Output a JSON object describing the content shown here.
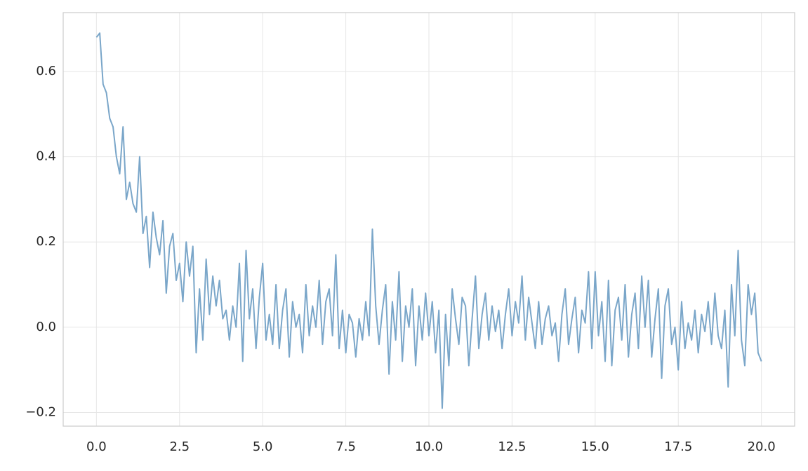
{
  "chart_data": {
    "type": "line",
    "x": [
      0,
      0.1,
      0.2,
      0.3,
      0.4,
      0.5,
      0.6,
      0.7,
      0.8,
      0.9,
      1,
      1.1,
      1.2,
      1.3,
      1.4,
      1.5,
      1.6,
      1.7,
      1.8,
      1.9,
      2,
      2.1,
      2.2,
      2.3,
      2.4,
      2.5,
      2.6,
      2.7,
      2.8,
      2.9,
      3,
      3.1,
      3.2,
      3.3,
      3.4,
      3.5,
      3.6,
      3.7,
      3.8,
      3.9,
      4,
      4.1,
      4.2,
      4.3,
      4.4,
      4.5,
      4.6,
      4.7,
      4.8,
      4.9,
      5,
      5.1,
      5.2,
      5.3,
      5.4,
      5.5,
      5.6,
      5.7,
      5.8,
      5.9,
      6,
      6.1,
      6.2,
      6.3,
      6.4,
      6.5,
      6.6,
      6.7,
      6.8,
      6.9,
      7,
      7.1,
      7.2,
      7.3,
      7.4,
      7.5,
      7.6,
      7.7,
      7.8,
      7.9,
      8,
      8.1,
      8.2,
      8.3,
      8.4,
      8.5,
      8.6,
      8.7,
      8.8,
      8.9,
      9,
      9.1,
      9.2,
      9.3,
      9.4,
      9.5,
      9.6,
      9.7,
      9.8,
      9.9,
      10,
      10.1,
      10.2,
      10.3,
      10.4,
      10.5,
      10.6,
      10.7,
      10.8,
      10.9,
      11,
      11.1,
      11.2,
      11.3,
      11.4,
      11.5,
      11.6,
      11.7,
      11.8,
      11.9,
      12,
      12.1,
      12.2,
      12.3,
      12.4,
      12.5,
      12.6,
      12.7,
      12.8,
      12.9,
      13,
      13.1,
      13.2,
      13.3,
      13.4,
      13.5,
      13.6,
      13.7,
      13.8,
      13.9,
      14,
      14.1,
      14.2,
      14.3,
      14.4,
      14.5,
      14.6,
      14.7,
      14.8,
      14.9,
      15,
      15.1,
      15.2,
      15.3,
      15.4,
      15.5,
      15.6,
      15.7,
      15.8,
      15.9,
      16,
      16.1,
      16.2,
      16.3,
      16.4,
      16.5,
      16.6,
      16.7,
      16.8,
      16.9,
      17,
      17.1,
      17.2,
      17.3,
      17.4,
      17.5,
      17.6,
      17.7,
      17.8,
      17.9,
      18,
      18.1,
      18.2,
      18.3,
      18.4,
      18.5,
      18.6,
      18.7,
      18.8,
      18.9,
      19,
      19.1,
      19.2,
      19.3,
      19.4,
      19.5,
      19.6,
      19.7,
      19.8,
      19.9,
      20
    ],
    "series": [
      {
        "color": "#7aa6c9",
        "values": [
          0.68,
          0.69,
          0.57,
          0.55,
          0.49,
          0.47,
          0.4,
          0.36,
          0.47,
          0.3,
          0.34,
          0.29,
          0.27,
          0.4,
          0.22,
          0.26,
          0.14,
          0.27,
          0.21,
          0.17,
          0.25,
          0.08,
          0.19,
          0.22,
          0.11,
          0.15,
          0.06,
          0.2,
          0.12,
          0.19,
          -0.06,
          0.09,
          -0.03,
          0.16,
          0.03,
          0.12,
          0.05,
          0.11,
          0.02,
          0.04,
          -0.03,
          0.05,
          0.0,
          0.15,
          -0.08,
          0.18,
          0.02,
          0.09,
          -0.05,
          0.07,
          0.15,
          -0.03,
          0.03,
          -0.04,
          0.1,
          -0.05,
          0.04,
          0.09,
          -0.07,
          0.06,
          0.0,
          0.03,
          -0.06,
          0.1,
          -0.02,
          0.05,
          0.0,
          0.11,
          -0.04,
          0.06,
          0.09,
          -0.02,
          0.17,
          -0.05,
          0.04,
          -0.06,
          0.03,
          0.01,
          -0.07,
          0.02,
          -0.03,
          0.06,
          -0.02,
          0.23,
          0.05,
          -0.04,
          0.04,
          0.1,
          -0.11,
          0.06,
          -0.03,
          0.13,
          -0.08,
          0.05,
          0.0,
          0.09,
          -0.09,
          0.05,
          -0.03,
          0.08,
          -0.02,
          0.06,
          -0.06,
          0.04,
          -0.19,
          0.03,
          -0.09,
          0.09,
          0.02,
          -0.04,
          0.07,
          0.05,
          -0.09,
          0.02,
          0.12,
          -0.05,
          0.03,
          0.08,
          -0.03,
          0.05,
          -0.01,
          0.04,
          -0.05,
          0.03,
          0.09,
          -0.02,
          0.06,
          0.01,
          0.12,
          -0.03,
          0.07,
          0.01,
          -0.05,
          0.06,
          -0.04,
          0.02,
          0.05,
          -0.02,
          0.01,
          -0.08,
          0.03,
          0.09,
          -0.04,
          0.02,
          0.07,
          -0.06,
          0.04,
          0.01,
          0.13,
          -0.05,
          0.13,
          -0.02,
          0.06,
          -0.08,
          0.11,
          -0.09,
          0.04,
          0.07,
          -0.03,
          0.1,
          -0.07,
          0.03,
          0.08,
          -0.05,
          0.12,
          0.0,
          0.11,
          -0.07,
          0.02,
          0.09,
          -0.12,
          0.05,
          0.09,
          -0.04,
          0.0,
          -0.1,
          0.06,
          -0.05,
          0.01,
          -0.03,
          0.04,
          -0.06,
          0.03,
          -0.01,
          0.06,
          -0.04,
          0.08,
          -0.02,
          -0.05,
          0.04,
          -0.14,
          0.1,
          -0.02,
          0.18,
          -0.03,
          -0.09,
          0.1,
          0.03,
          0.08,
          -0.06,
          -0.08
        ]
      }
    ],
    "xlim": [
      -1,
      21
    ],
    "xticks": [
      {
        "value": 0,
        "label": "0.0"
      },
      2.5,
      {
        "value": 5,
        "label": "5.0"
      },
      7.5,
      {
        "value": 10,
        "label": "10.0"
      },
      12.5,
      {
        "value": 15,
        "label": "15.0"
      },
      17.5,
      {
        "value": 20,
        "label": "20.0"
      }
    ],
    "ylim": [
      -0.232,
      0.738
    ],
    "yticks": [
      {
        "value": -0.2,
        "label": "−0.2"
      },
      {
        "value": 0,
        "label": "0.0"
      },
      0.2,
      0.4,
      0.6
    ],
    "grid": true
  }
}
